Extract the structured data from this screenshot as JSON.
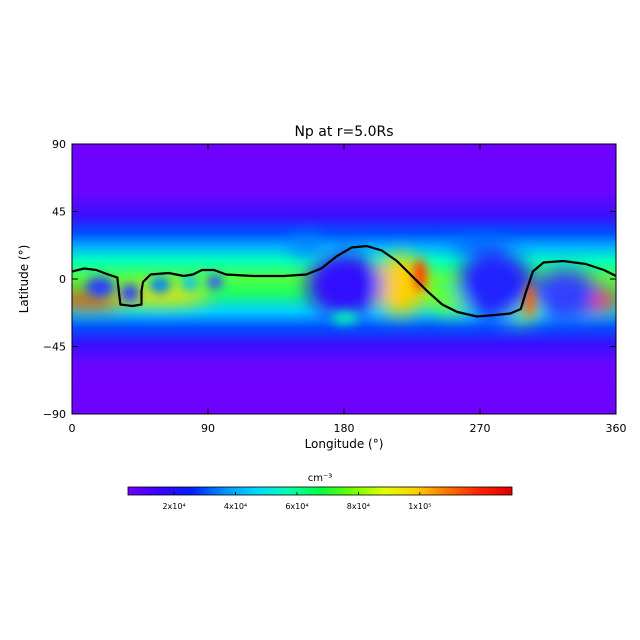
{
  "chart_data": {
    "type": "heatmap",
    "title": "Np at r=5.0Rs",
    "xlabel": "Longitude (°)",
    "ylabel": "Latitude (°)",
    "xlim": [
      0,
      360
    ],
    "ylim": [
      -90,
      90
    ],
    "x_ticks": [
      0,
      90,
      180,
      270,
      360
    ],
    "x_tick_labels": [
      "0",
      "90",
      "180",
      "270",
      "360"
    ],
    "y_ticks": [
      90,
      45,
      0,
      -45,
      -90
    ],
    "y_tick_labels": [
      "90",
      "45",
      "0",
      "−45",
      "−90"
    ],
    "colorbar": {
      "unit_label": "cm⁻³",
      "range": [
        5000,
        130000
      ],
      "ticks": [
        20000,
        40000,
        60000,
        80000,
        100000
      ],
      "tick_labels": [
        "2x10⁴",
        "4x10⁴",
        "6x10⁴",
        "8x10⁴",
        "1x10⁵"
      ],
      "colors": [
        "#7000ff",
        "#3a00ff",
        "#0020ff",
        "#0090ff",
        "#00d8ff",
        "#00ffb0",
        "#00ff40",
        "#70ff00",
        "#e0ff00",
        "#ffd000",
        "#ff7000",
        "#ff2000",
        "#e00000"
      ]
    },
    "neutral_line": [
      [
        0,
        5
      ],
      [
        8,
        7
      ],
      [
        16,
        6
      ],
      [
        24,
        3
      ],
      [
        30,
        1
      ],
      [
        31,
        -8
      ],
      [
        32,
        -17
      ],
      [
        40,
        -18
      ],
      [
        46,
        -17
      ],
      [
        46,
        -8
      ],
      [
        47,
        -2
      ],
      [
        52,
        3
      ],
      [
        64,
        4
      ],
      [
        74,
        2
      ],
      [
        80,
        3
      ],
      [
        86,
        6
      ],
      [
        94,
        6
      ],
      [
        102,
        3
      ],
      [
        120,
        2
      ],
      [
        140,
        2
      ],
      [
        155,
        3
      ],
      [
        165,
        7
      ],
      [
        175,
        15
      ],
      [
        185,
        21
      ],
      [
        195,
        22
      ],
      [
        205,
        19
      ],
      [
        215,
        12
      ],
      [
        225,
        2
      ],
      [
        235,
        -8
      ],
      [
        245,
        -17
      ],
      [
        255,
        -22
      ],
      [
        268,
        -25
      ],
      [
        280,
        -24
      ],
      [
        290,
        -23
      ],
      [
        297,
        -20
      ],
      [
        300,
        -10
      ],
      [
        305,
        5
      ],
      [
        312,
        11
      ],
      [
        325,
        12
      ],
      [
        340,
        10
      ],
      [
        352,
        6
      ],
      [
        360,
        2
      ]
    ]
  }
}
